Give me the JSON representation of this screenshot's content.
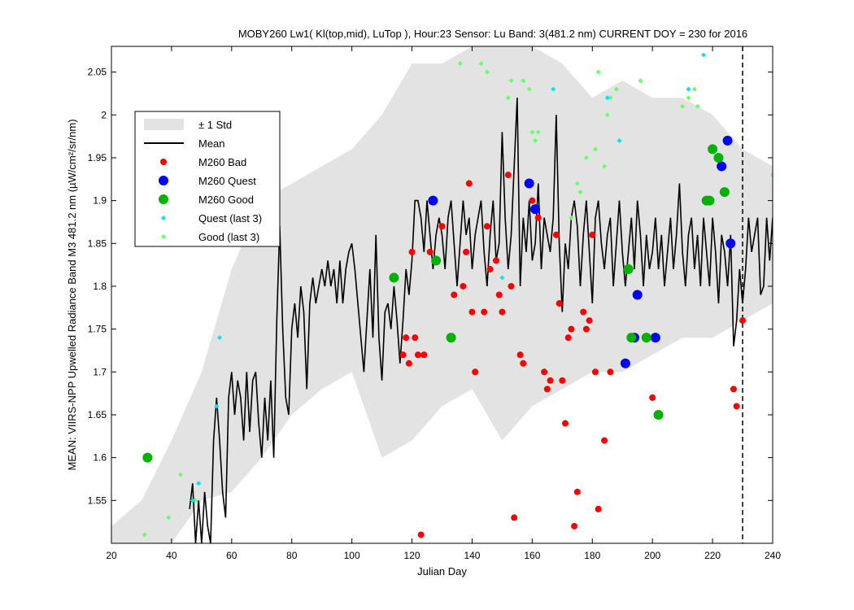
{
  "chart_data": {
    "type": "scatter",
    "title": "MOBY260   Lw1( Kl(top,mid), LuTop ),   Hour:23 Sensor: Lu Band: 3(481.2 nm)   CURRENT DOY = 230 for 2016",
    "xlabel": "Julian Day",
    "ylabel": "MEAN: VIIRS-NPP Upwelled Radiance Band M3 481.2 nm (µW/cm²/sr/nm)",
    "xlim": [
      20,
      240
    ],
    "ylim": [
      1.5,
      2.08
    ],
    "xticks": [
      20,
      40,
      60,
      80,
      100,
      120,
      140,
      160,
      180,
      200,
      220,
      240
    ],
    "yticks": [
      1.55,
      1.6,
      1.65,
      1.7,
      1.75,
      1.8,
      1.85,
      1.9,
      1.95,
      2.0,
      2.05
    ],
    "ytick_labels": [
      "1.55",
      "1.6",
      "1.65",
      "1.7",
      "1.75",
      "1.8",
      "1.85",
      "1.9",
      "1.95",
      "2",
      "2.05"
    ],
    "current_doy": 230,
    "legend_position": "top-left",
    "legend": [
      "± 1 Std",
      "Mean",
      "M260 Bad",
      "M260 Quest",
      "M260 Good",
      "Quest (last 3)",
      "Good (last 3)"
    ],
    "colors": {
      "std": "#e3e3e3",
      "mean": "#000000",
      "bad": "#ff0000",
      "quest": "#0000ff",
      "good": "#00b300",
      "quest_last3": "#00e5ff",
      "good_last3": "#66ff66"
    },
    "mean_series": [
      [
        46,
        1.54
      ],
      [
        47,
        1.57
      ],
      [
        48,
        1.5
      ],
      [
        49,
        1.55
      ],
      [
        50,
        1.5
      ],
      [
        51,
        1.56
      ],
      [
        52,
        1.52
      ],
      [
        53,
        1.5
      ],
      [
        54,
        1.62
      ],
      [
        55,
        1.67
      ],
      [
        56,
        1.62
      ],
      [
        57,
        1.56
      ],
      [
        58,
        1.53
      ],
      [
        59,
        1.67
      ],
      [
        60,
        1.7
      ],
      [
        61,
        1.65
      ],
      [
        62,
        1.69
      ],
      [
        63,
        1.67
      ],
      [
        64,
        1.62
      ],
      [
        65,
        1.7
      ],
      [
        66,
        1.63
      ],
      [
        67,
        1.69
      ],
      [
        68,
        1.7
      ],
      [
        69,
        1.64
      ],
      [
        70,
        1.6
      ],
      [
        71,
        1.67
      ],
      [
        72,
        1.62
      ],
      [
        73,
        1.69
      ],
      [
        74,
        1.6
      ],
      [
        75,
        1.76
      ],
      [
        76,
        1.87
      ],
      [
        77,
        1.75
      ],
      [
        78,
        1.67
      ],
      [
        79,
        1.65
      ],
      [
        80,
        1.75
      ],
      [
        81,
        1.78
      ],
      [
        82,
        1.74
      ],
      [
        83,
        1.8
      ],
      [
        84,
        1.77
      ],
      [
        85,
        1.68
      ],
      [
        86,
        1.78
      ],
      [
        87,
        1.81
      ],
      [
        88,
        1.78
      ],
      [
        89,
        1.8
      ],
      [
        90,
        1.82
      ],
      [
        91,
        1.8
      ],
      [
        92,
        1.83
      ],
      [
        93,
        1.8
      ],
      [
        94,
        1.82
      ],
      [
        95,
        1.78
      ],
      [
        96,
        1.83
      ],
      [
        97,
        1.78
      ],
      [
        98,
        1.82
      ],
      [
        99,
        1.84
      ],
      [
        100,
        1.85
      ],
      [
        101,
        1.82
      ],
      [
        102,
        1.78
      ],
      [
        103,
        1.74
      ],
      [
        104,
        1.7
      ],
      [
        105,
        1.76
      ],
      [
        106,
        1.82
      ],
      [
        107,
        1.74
      ],
      [
        108,
        1.86
      ],
      [
        109,
        1.74
      ],
      [
        110,
        1.69
      ],
      [
        111,
        1.77
      ],
      [
        112,
        1.78
      ],
      [
        113,
        1.75
      ],
      [
        114,
        1.8
      ],
      [
        115,
        1.76
      ],
      [
        116,
        1.71
      ],
      [
        117,
        1.76
      ],
      [
        118,
        1.82
      ],
      [
        119,
        1.79
      ],
      [
        120,
        1.83
      ],
      [
        121,
        1.9
      ],
      [
        122,
        1.9
      ],
      [
        123,
        1.88
      ],
      [
        124,
        1.84
      ],
      [
        125,
        1.9
      ],
      [
        126,
        1.86
      ],
      [
        127,
        1.82
      ],
      [
        128,
        1.86
      ],
      [
        129,
        1.88
      ],
      [
        130,
        1.86
      ],
      [
        131,
        1.82
      ],
      [
        132,
        1.88
      ],
      [
        133,
        1.9
      ],
      [
        134,
        1.85
      ],
      [
        135,
        1.8
      ],
      [
        136,
        1.85
      ],
      [
        137,
        1.9
      ],
      [
        138,
        1.86
      ],
      [
        139,
        1.88
      ],
      [
        140,
        1.82
      ],
      [
        141,
        1.86
      ],
      [
        142,
        1.88
      ],
      [
        143,
        1.9
      ],
      [
        144,
        1.84
      ],
      [
        145,
        1.8
      ],
      [
        146,
        1.86
      ],
      [
        147,
        1.9
      ],
      [
        148,
        1.83
      ],
      [
        149,
        1.85
      ],
      [
        150,
        1.98
      ],
      [
        151,
        1.88
      ],
      [
        152,
        1.82
      ],
      [
        153,
        1.86
      ],
      [
        154,
        1.94
      ],
      [
        155,
        2.02
      ],
      [
        156,
        1.8
      ],
      [
        157,
        1.88
      ],
      [
        158,
        1.84
      ],
      [
        159,
        1.9
      ],
      [
        160,
        1.83
      ],
      [
        161,
        1.85
      ],
      [
        162,
        1.92
      ],
      [
        163,
        1.82
      ],
      [
        164,
        1.88
      ],
      [
        165,
        1.86
      ],
      [
        166,
        1.84
      ],
      [
        167,
        1.88
      ],
      [
        168,
        2.0
      ],
      [
        169,
        1.85
      ],
      [
        170,
        1.77
      ],
      [
        171,
        1.85
      ],
      [
        172,
        1.82
      ],
      [
        173,
        1.88
      ],
      [
        174,
        1.9
      ],
      [
        175,
        1.87
      ],
      [
        176,
        1.8
      ],
      [
        177,
        1.86
      ],
      [
        178,
        1.9
      ],
      [
        179,
        1.84
      ],
      [
        180,
        1.78
      ],
      [
        181,
        1.88
      ],
      [
        182,
        1.9
      ],
      [
        183,
        1.85
      ],
      [
        184,
        1.82
      ],
      [
        185,
        1.86
      ],
      [
        186,
        1.88
      ],
      [
        187,
        1.8
      ],
      [
        188,
        1.85
      ],
      [
        189,
        1.9
      ],
      [
        190,
        1.84
      ],
      [
        191,
        1.8
      ],
      [
        192,
        1.84
      ],
      [
        193,
        1.88
      ],
      [
        194,
        1.82
      ],
      [
        195,
        1.9
      ],
      [
        196,
        1.86
      ],
      [
        197,
        1.8
      ],
      [
        198,
        1.86
      ],
      [
        199,
        1.82
      ],
      [
        200,
        1.84
      ],
      [
        201,
        1.88
      ],
      [
        202,
        1.82
      ],
      [
        203,
        1.86
      ],
      [
        204,
        1.8
      ],
      [
        205,
        1.84
      ],
      [
        206,
        1.88
      ],
      [
        207,
        1.82
      ],
      [
        208,
        1.86
      ],
      [
        209,
        1.92
      ],
      [
        210,
        1.84
      ],
      [
        211,
        1.8
      ],
      [
        212,
        1.86
      ],
      [
        213,
        1.88
      ],
      [
        214,
        1.82
      ],
      [
        215,
        1.86
      ],
      [
        216,
        1.8
      ],
      [
        217,
        1.88
      ],
      [
        218,
        1.84
      ],
      [
        219,
        1.8
      ],
      [
        220,
        1.88
      ],
      [
        221,
        1.84
      ],
      [
        222,
        1.78
      ],
      [
        223,
        1.86
      ],
      [
        224,
        1.84
      ],
      [
        225,
        1.8
      ],
      [
        226,
        1.86
      ],
      [
        227,
        1.73
      ],
      [
        228,
        1.76
      ],
      [
        229,
        1.82
      ],
      [
        230,
        1.78
      ],
      [
        231,
        1.82
      ],
      [
        232,
        1.88
      ],
      [
        233,
        1.84
      ],
      [
        234,
        1.86
      ],
      [
        235,
        1.88
      ],
      [
        236,
        1.79
      ],
      [
        237,
        1.8
      ],
      [
        238,
        1.88
      ],
      [
        239,
        1.83
      ],
      [
        240,
        1.88
      ]
    ],
    "std_band": [
      [
        20,
        1.5,
        1.52
      ],
      [
        30,
        1.5,
        1.55
      ],
      [
        40,
        1.5,
        1.62
      ],
      [
        50,
        1.55,
        1.7
      ],
      [
        60,
        1.56,
        1.82
      ],
      [
        70,
        1.6,
        1.9
      ],
      [
        80,
        1.65,
        1.92
      ],
      [
        90,
        1.68,
        1.94
      ],
      [
        100,
        1.7,
        1.96
      ],
      [
        110,
        1.6,
        2.0
      ],
      [
        120,
        1.62,
        2.06
      ],
      [
        130,
        1.66,
        2.06
      ],
      [
        140,
        1.68,
        2.08
      ],
      [
        150,
        1.62,
        2.08
      ],
      [
        160,
        1.66,
        2.08
      ],
      [
        170,
        1.68,
        2.06
      ],
      [
        180,
        1.7,
        2.02
      ],
      [
        190,
        1.7,
        2.04
      ],
      [
        200,
        1.72,
        2.02
      ],
      [
        210,
        1.74,
        2.02
      ],
      [
        220,
        1.74,
        2.0
      ],
      [
        230,
        1.76,
        1.96
      ],
      [
        240,
        1.78,
        1.94
      ]
    ],
    "bad_points": [
      [
        117,
        1.72
      ],
      [
        118,
        1.74
      ],
      [
        119,
        1.71
      ],
      [
        120,
        1.84
      ],
      [
        121,
        1.74
      ],
      [
        122,
        1.72
      ],
      [
        123,
        1.51
      ],
      [
        124,
        1.72
      ],
      [
        126,
        1.84
      ],
      [
        130,
        1.87
      ],
      [
        134,
        1.79
      ],
      [
        137,
        1.8
      ],
      [
        138,
        1.84
      ],
      [
        139,
        1.92
      ],
      [
        140,
        1.77
      ],
      [
        141,
        1.7
      ],
      [
        144,
        1.77
      ],
      [
        145,
        1.87
      ],
      [
        146,
        1.82
      ],
      [
        148,
        1.83
      ],
      [
        149,
        1.79
      ],
      [
        150,
        1.77
      ],
      [
        152,
        1.93
      ],
      [
        153,
        1.8
      ],
      [
        154,
        1.53
      ],
      [
        156,
        1.72
      ],
      [
        157,
        1.71
      ],
      [
        160,
        1.9
      ],
      [
        162,
        1.88
      ],
      [
        164,
        1.7
      ],
      [
        165,
        1.68
      ],
      [
        166,
        1.69
      ],
      [
        168,
        1.86
      ],
      [
        169,
        1.78
      ],
      [
        170,
        1.69
      ],
      [
        171,
        1.64
      ],
      [
        172,
        1.74
      ],
      [
        173,
        1.75
      ],
      [
        174,
        1.52
      ],
      [
        175,
        1.56
      ],
      [
        177,
        1.77
      ],
      [
        178,
        1.75
      ],
      [
        179,
        1.76
      ],
      [
        180,
        1.86
      ],
      [
        181,
        1.7
      ],
      [
        182,
        1.54
      ],
      [
        184,
        1.62
      ],
      [
        186,
        1.7
      ],
      [
        200,
        1.67
      ],
      [
        227,
        1.68
      ],
      [
        228,
        1.66
      ],
      [
        230,
        1.76
      ]
    ],
    "quest_points": [
      [
        127,
        1.9
      ],
      [
        159,
        1.92
      ],
      [
        161,
        1.89
      ],
      [
        191,
        1.71
      ],
      [
        194,
        1.74
      ],
      [
        195,
        1.79
      ],
      [
        201,
        1.74
      ],
      [
        223,
        1.94
      ],
      [
        225,
        1.97
      ],
      [
        226,
        1.85
      ]
    ],
    "good_points": [
      [
        32,
        1.6
      ],
      [
        114,
        1.81
      ],
      [
        128,
        1.83
      ],
      [
        133,
        1.74
      ],
      [
        192,
        1.82
      ],
      [
        193,
        1.74
      ],
      [
        198,
        1.74
      ],
      [
        202,
        1.65
      ],
      [
        218,
        1.9
      ],
      [
        219,
        1.9
      ],
      [
        220,
        1.96
      ],
      [
        222,
        1.95
      ],
      [
        224,
        1.91
      ]
    ],
    "quest_last3_points": [
      [
        47,
        1.55
      ],
      [
        49,
        1.57
      ],
      [
        55,
        1.66
      ],
      [
        56,
        1.74
      ],
      [
        150,
        1.81
      ],
      [
        167,
        2.03
      ],
      [
        185,
        2.02
      ],
      [
        189,
        1.97
      ],
      [
        212,
        2.03
      ],
      [
        217,
        2.07
      ]
    ],
    "good_last3_points": [
      [
        31,
        1.51
      ],
      [
        39,
        1.53
      ],
      [
        43,
        1.58
      ],
      [
        48,
        1.55
      ],
      [
        136,
        2.06
      ],
      [
        143,
        2.06
      ],
      [
        145,
        2.05
      ],
      [
        152,
        2.02
      ],
      [
        153,
        2.04
      ],
      [
        157,
        2.04
      ],
      [
        159,
        2.03
      ],
      [
        160,
        1.98
      ],
      [
        161,
        1.97
      ],
      [
        162,
        1.98
      ],
      [
        173,
        1.88
      ],
      [
        175,
        1.92
      ],
      [
        176,
        1.91
      ],
      [
        178,
        1.95
      ],
      [
        181,
        1.96
      ],
      [
        182,
        2.05
      ],
      [
        184,
        1.94
      ],
      [
        185,
        2.0
      ],
      [
        186,
        2.02
      ],
      [
        188,
        2.03
      ],
      [
        196,
        2.04
      ],
      [
        210,
        2.01
      ],
      [
        212,
        2.02
      ],
      [
        214,
        2.03
      ],
      [
        215,
        2.01
      ],
      [
        240,
        1.93
      ]
    ]
  }
}
